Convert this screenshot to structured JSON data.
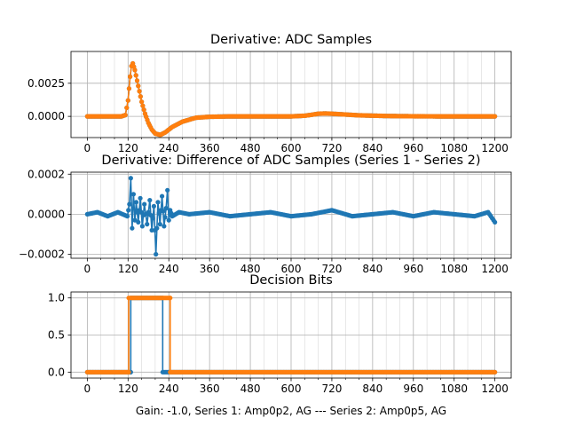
{
  "figure": {
    "footer_label": "Gain: -1.0, Series 1: Amp0p2, AG --- Series 2: Amp0p5, AG"
  },
  "colors": {
    "series1": "#1f77b4",
    "series2": "#ff7f0e",
    "grid": "#b0b0b0"
  },
  "chart_data": [
    {
      "type": "line",
      "title": "Derivative: ADC Samples",
      "xlim": [
        -48,
        1248
      ],
      "ylim": [
        -0.0016,
        0.0049
      ],
      "xticks": [
        0,
        120,
        240,
        360,
        480,
        600,
        720,
        840,
        960,
        1080,
        1200
      ],
      "yticks": [
        0.0,
        0.0025
      ],
      "ytick_labels": [
        "0.0000",
        "0.0025"
      ],
      "grid": true,
      "series": [
        {
          "color": "series1",
          "x": [
            0,
            100,
            112,
            120,
            126,
            130,
            134,
            140,
            150,
            160,
            170,
            180,
            190,
            200,
            215,
            230,
            250,
            280,
            320,
            360,
            420,
            500,
            600,
            640,
            660,
            680,
            700,
            720,
            760,
            800,
            880,
            960,
            1040,
            1200
          ],
          "y": [
            0,
            0,
            0.0001,
            0.0012,
            0.003,
            0.0038,
            0.004,
            0.0035,
            0.0023,
            0.0011,
            0.0002,
            -0.0005,
            -0.001,
            -0.0013,
            -0.0014,
            -0.0012,
            -0.0008,
            -0.0004,
            -0.0001,
            -3e-05,
            0,
            0,
            0,
            5e-05,
            0.00012,
            0.0002,
            0.00022,
            0.0002,
            0.00014,
            8e-05,
            3e-05,
            1e-05,
            0,
            0
          ]
        },
        {
          "color": "series2",
          "x": [
            0,
            100,
            112,
            120,
            126,
            130,
            134,
            140,
            150,
            160,
            170,
            180,
            190,
            200,
            215,
            230,
            250,
            280,
            320,
            360,
            420,
            500,
            600,
            640,
            660,
            680,
            700,
            720,
            760,
            800,
            880,
            960,
            1040,
            1200
          ],
          "y": [
            0,
            0,
            0.0001,
            0.0012,
            0.003,
            0.0038,
            0.004,
            0.0035,
            0.0023,
            0.0011,
            0.0002,
            -0.0005,
            -0.001,
            -0.0013,
            -0.0014,
            -0.0012,
            -0.0008,
            -0.0004,
            -0.0001,
            -3e-05,
            0,
            0,
            0,
            5e-05,
            0.00012,
            0.0002,
            0.00022,
            0.0002,
            0.00014,
            8e-05,
            3e-05,
            1e-05,
            0,
            0
          ]
        }
      ]
    },
    {
      "type": "line",
      "title": "Derivative: Difference of ADC Samples (Series 1 - Series 2)",
      "xlim": [
        -48,
        1248
      ],
      "ylim": [
        -0.00022,
        0.00021
      ],
      "xticks": [
        0,
        120,
        240,
        360,
        480,
        600,
        720,
        840,
        960,
        1080,
        1200
      ],
      "yticks": [
        -0.0002,
        0.0,
        0.0002
      ],
      "ytick_labels": [
        "−0.0002",
        "0.0000",
        "0.0002"
      ],
      "grid": true,
      "series": [
        {
          "color": "series1",
          "x": [
            0,
            30,
            60,
            90,
            118,
            124,
            128,
            132,
            136,
            140,
            144,
            150,
            156,
            162,
            168,
            176,
            184,
            190,
            196,
            202,
            208,
            214,
            220,
            226,
            232,
            236,
            240,
            244,
            250,
            270,
            300,
            360,
            420,
            480,
            540,
            600,
            660,
            720,
            780,
            840,
            900,
            960,
            1020,
            1080,
            1140,
            1180,
            1200
          ],
          "y": [
            0,
            1e-05,
            -1e-05,
            1e-05,
            -1e-05,
            5e-05,
            0.00018,
            -7e-05,
            0.0001,
            -3e-05,
            6e-05,
            -4e-05,
            8e-05,
            -6e-05,
            5e-05,
            -5e-05,
            7e-05,
            -8e-05,
            4e-05,
            -0.0002,
            6e-05,
            -5e-05,
            9e-05,
            -6e-05,
            3e-05,
            0.00012,
            -3e-05,
            2e-05,
            -1e-05,
            1e-05,
            0,
            1e-05,
            -1e-05,
            0,
            1e-05,
            -1e-05,
            0,
            2e-05,
            -1e-05,
            0,
            1e-05,
            -1e-05,
            1e-05,
            0,
            -1e-05,
            1e-05,
            -4e-05
          ]
        }
      ]
    },
    {
      "type": "line",
      "title": "Decision Bits",
      "xlim": [
        -48,
        1248
      ],
      "ylim": [
        -0.08,
        1.08
      ],
      "xticks": [
        0,
        120,
        240,
        360,
        480,
        600,
        720,
        840,
        960,
        1080,
        1200
      ],
      "xtick_labels": [
        "0",
        "120",
        "240",
        "360",
        "480",
        "600",
        "720",
        "840",
        "960",
        "1080",
        "1200"
      ],
      "yticks": [
        0.0,
        0.5,
        1.0
      ],
      "ytick_labels": [
        "0.0",
        "0.5",
        "1.0"
      ],
      "grid": true,
      "xlabel": "Gain: -1.0, Series 1: Amp0p2, AG --- Series 2: Amp0p5, AG",
      "series": [
        {
          "color": "series1",
          "x": [
            0,
            127,
            128,
            128,
            222,
            222,
            1200
          ],
          "y": [
            0,
            0,
            0,
            1,
            1,
            0,
            0
          ]
        },
        {
          "color": "series2",
          "x": [
            0,
            121,
            122,
            122,
            243,
            244,
            244,
            1200
          ],
          "y": [
            0,
            0,
            0,
            1,
            1,
            1,
            0,
            0
          ]
        }
      ]
    }
  ]
}
